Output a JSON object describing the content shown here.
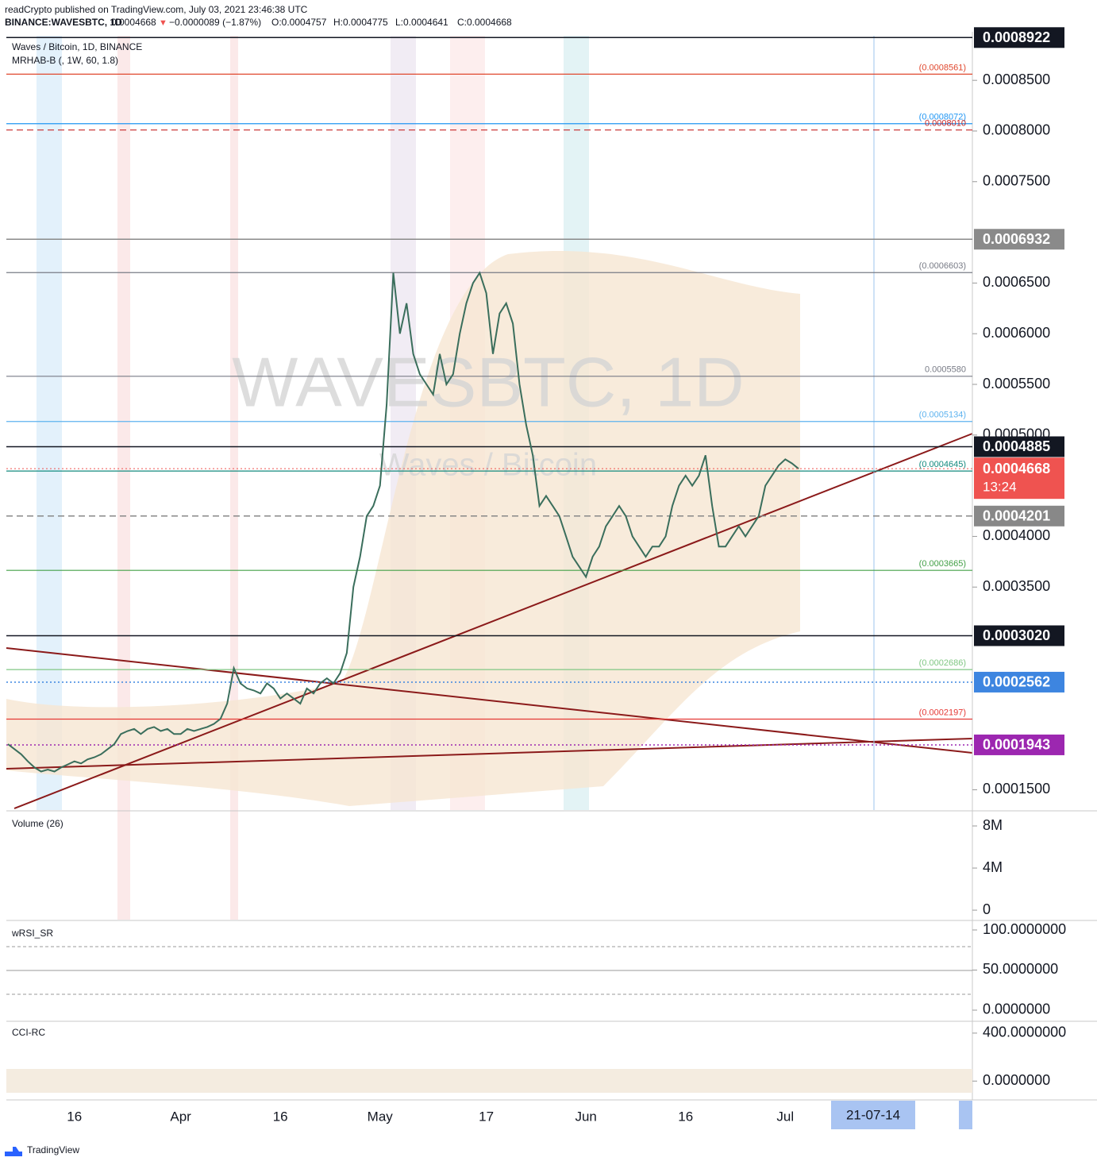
{
  "header": {
    "publisher": "readCrypto published on TradingView.com, July 03, 2021 23:46:38 UTC",
    "symbol": "BINANCE:WAVESBTC, 1D",
    "last": "0.0004668",
    "change": "−0.0000089 (−1.87%)",
    "open": "O:0.0004757",
    "high": "H:0.0004775",
    "low": "L:0.0004641",
    "close": "C:0.0004668"
  },
  "x_cursor": "21-07-14",
  "footer": "TradingView",
  "chart_data": [
    {
      "type": "line",
      "title": "Waves / Bitcoin, 1D, BINANCE",
      "subtitle": "MRHAB-B (, 1W, 60, 1.8)",
      "watermark": "WAVESBTC, 1D",
      "watermark_sub": "Waves / Bitcoin",
      "color": "#3a6e5c",
      "categories": [
        null,
        null,
        null,
        null,
        null,
        null,
        null,
        null,
        null,
        null,
        "16",
        null,
        null,
        null,
        null,
        null,
        null,
        null,
        null,
        null,
        null,
        null,
        null,
        null,
        null,
        null,
        "Apr",
        null,
        null,
        null,
        null,
        null,
        null,
        null,
        null,
        null,
        null,
        null,
        null,
        null,
        null,
        "16",
        null,
        null,
        null,
        null,
        null,
        null,
        null,
        null,
        null,
        null,
        null,
        null,
        null,
        null,
        "May",
        null,
        null,
        null,
        null,
        null,
        null,
        null,
        null,
        null,
        null,
        null,
        null,
        null,
        null,
        null,
        "17",
        null,
        null,
        null,
        null,
        null,
        null,
        null,
        null,
        null,
        null,
        null,
        null,
        null,
        null,
        "Jun",
        null,
        null,
        null,
        null,
        null,
        null,
        null,
        null,
        null,
        null,
        null,
        null,
        null,
        null,
        "16",
        null,
        null,
        null,
        null,
        null,
        null,
        null,
        null,
        null,
        null,
        null,
        null,
        null,
        null,
        "Jul",
        null,
        null
      ],
      "values": [
        0.000195,
        0.00019,
        0.000185,
        0.000178,
        0.000172,
        0.000168,
        0.00017,
        0.000168,
        0.000172,
        0.000175,
        0.000178,
        0.000176,
        0.00018,
        0.000182,
        0.000185,
        0.00019,
        0.000195,
        0.000205,
        0.000208,
        0.00021,
        0.000205,
        0.00021,
        0.000212,
        0.000208,
        0.00021,
        0.000205,
        0.000205,
        0.00021,
        0.000208,
        0.00021,
        0.000212,
        0.000215,
        0.00022,
        0.000235,
        0.00027,
        0.000255,
        0.00025,
        0.000248,
        0.000245,
        0.000255,
        0.00025,
        0.00024,
        0.000245,
        0.00024,
        0.000235,
        0.00025,
        0.000245,
        0.000255,
        0.00026,
        0.000255,
        0.000265,
        0.000285,
        0.00035,
        0.00038,
        0.00042,
        0.00043,
        0.00045,
        0.00053,
        0.00066,
        0.0006,
        0.00063,
        0.00058,
        0.00056,
        0.00055,
        0.00054,
        0.00058,
        0.00055,
        0.00056,
        0.0006,
        0.00063,
        0.00065,
        0.00066,
        0.00064,
        0.00058,
        0.00062,
        0.00063,
        0.00061,
        0.00055,
        0.00051,
        0.00048,
        0.00043,
        0.00044,
        0.00043,
        0.00042,
        0.0004,
        0.00038,
        0.00037,
        0.00036,
        0.00038,
        0.00039,
        0.00041,
        0.00042,
        0.00043,
        0.00042,
        0.0004,
        0.00039,
        0.00038,
        0.00039,
        0.00039,
        0.0004,
        0.00043,
        0.00045,
        0.00046,
        0.00045,
        0.00046,
        0.00048,
        0.00043,
        0.00039,
        0.00039,
        0.0004,
        0.00041,
        0.0004,
        0.00041,
        0.00042,
        0.00045,
        0.00046,
        0.00047,
        0.000476,
        0.000472,
        0.0004668
      ],
      "ylim": [
        0.00013,
        0.000894
      ],
      "yticks": [
        {
          "value": 0.00015,
          "label": "0.0001500"
        },
        {
          "value": 0.00035,
          "label": "0.0003500"
        },
        {
          "value": 0.0004,
          "label": "0.0004000"
        },
        {
          "value": 0.0005,
          "label": "0.0005000"
        },
        {
          "value": 0.00055,
          "label": "0.0005500"
        },
        {
          "value": 0.0006,
          "label": "0.0006000"
        },
        {
          "value": 0.00065,
          "label": "0.0006500"
        },
        {
          "value": 0.00075,
          "label": "0.0007500"
        },
        {
          "value": 0.0008,
          "label": "0.0008000"
        },
        {
          "value": 0.00085,
          "label": "0.0008500"
        }
      ],
      "levels": [
        {
          "value": 0.0008922,
          "label": "0.0008922",
          "color": "#131722",
          "dash": "solid",
          "badge": true
        },
        {
          "value": 0.0008561,
          "label": "(0.0008561)",
          "color": "#e0482e",
          "dash": "solid",
          "badge": false
        },
        {
          "value": 0.0008072,
          "label": "(0.0008072)",
          "color": "#2196f3",
          "dash": "solid",
          "badge": false
        },
        {
          "value": 0.000801,
          "label": "0.0008010",
          "color": "#c62828",
          "dash": "dashed",
          "badge": false
        },
        {
          "value": 0.0006932,
          "label": "0.0006932",
          "color": "#8a8a8a",
          "dash": "solid",
          "badge": true
        },
        {
          "value": 0.0006603,
          "label": "(0.0006603)",
          "color": "#787b86",
          "dash": "solid",
          "badge": false
        },
        {
          "value": 0.000558,
          "label": "0.0005580",
          "color": "#787b86",
          "dash": "solid",
          "badge": false
        },
        {
          "value": 0.0005134,
          "label": "(0.0005134)",
          "color": "#5eb3ef",
          "dash": "solid",
          "badge": false
        },
        {
          "value": 0.0004885,
          "label": "0.0004885",
          "color": "#131722",
          "dash": "solid",
          "badge": true
        },
        {
          "value": 0.0004645,
          "label": "(0.0004645)",
          "color": "#138a7e",
          "dash": "solid",
          "badge": false
        },
        {
          "value": 0.0004201,
          "label": "0.0004201",
          "color": "#888888",
          "dash": "dashed",
          "badge": true
        },
        {
          "value": 0.0003665,
          "label": "(0.0003665)",
          "color": "#43a047",
          "dash": "solid",
          "badge": false
        },
        {
          "value": 0.000302,
          "label": "0.0003020",
          "color": "#131722",
          "dash": "solid",
          "badge": true
        },
        {
          "value": 0.0002686,
          "label": "(0.0002686)",
          "color": "#81c784",
          "dash": "solid",
          "badge": false
        },
        {
          "value": 0.0002562,
          "label": "0.0002562",
          "color": "#3d85e0",
          "dash": "dotted",
          "badge": true
        },
        {
          "value": 0.0002197,
          "label": "(0.0002197)",
          "color": "#e53935",
          "dash": "solid",
          "badge": false
        },
        {
          "value": 0.0001943,
          "label": "0.0001943",
          "color": "#9c27b0",
          "dash": "dotted",
          "badge": true
        }
      ],
      "current": {
        "value": 0.0004668,
        "label": "0.0004668",
        "countdown": "13:24",
        "color": "#ef5350"
      }
    },
    {
      "type": "indicator",
      "title": "Volume (26)",
      "ylim": [
        -900000,
        9360000
      ],
      "yticks": [
        {
          "value": 8000000,
          "label": "8M"
        },
        {
          "value": 4000000,
          "label": "4M"
        },
        0
      ]
    },
    {
      "type": "indicator",
      "title": "wRSI_SR",
      "ylim": [
        -12.9,
        110.9
      ],
      "yticks": [
        {
          "value": 100,
          "label": "100.0000000"
        },
        {
          "value": 50,
          "label": "50.0000000"
        },
        {
          "value": 0,
          "label": "0.0000000"
        }
      ]
    },
    {
      "type": "indicator",
      "title": "CCI-RC",
      "ylim": [
        -157,
        492
      ],
      "yticks": [
        {
          "value": 400,
          "label": "400.0000000"
        },
        {
          "value": 0,
          "label": "0.0000000"
        }
      ]
    }
  ]
}
